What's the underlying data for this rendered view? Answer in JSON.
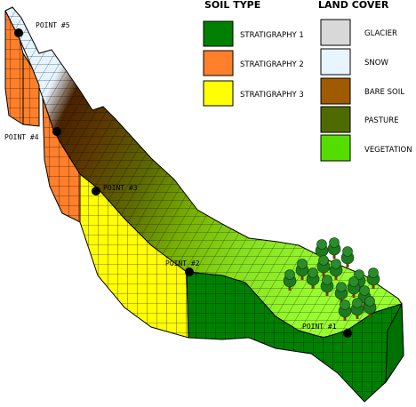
{
  "soil_legend": {
    "title": "SOIL TYPE",
    "items": [
      {
        "label": "STRATIGRAPHY 1",
        "color": "#008000"
      },
      {
        "label": "STRATIGRAPHY 2",
        "color": "#ff7f2a"
      },
      {
        "label": "STRATIGRAPHY 3",
        "color": "#ffff00"
      }
    ]
  },
  "land_legend": {
    "title": "LAND COVER",
    "items": [
      {
        "label": "GLACIER",
        "color": "#d8d8d8"
      },
      {
        "label": "SNOW",
        "color": "#e8f4ff"
      },
      {
        "label": "BARE SOIL",
        "color": "#a05a00"
      },
      {
        "label": "PASTURE",
        "color": "#4f6a00"
      },
      {
        "label": "VEGETATION",
        "color": "#55dd00"
      }
    ]
  },
  "points": [
    {
      "label": "POINT #5"
    },
    {
      "label": "POINT #4"
    },
    {
      "label": "POINT #3"
    },
    {
      "label": "POINT #2"
    },
    {
      "label": "POINT #1"
    }
  ]
}
